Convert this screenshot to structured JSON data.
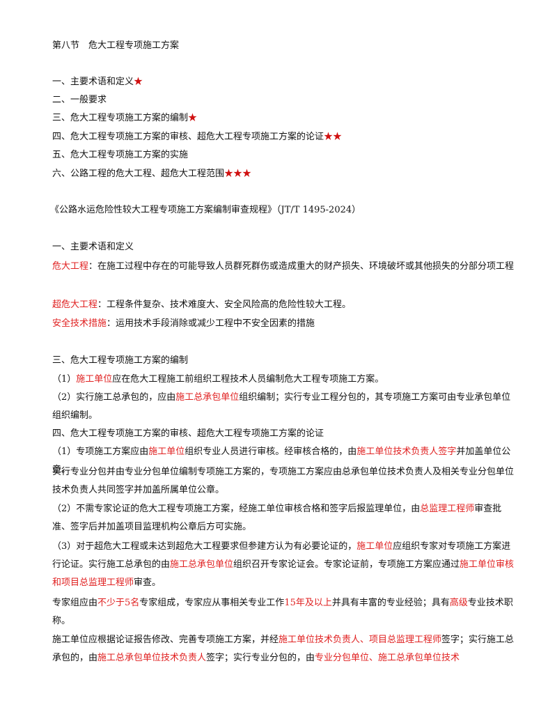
{
  "section_title": "第八节　危大工程专项施工方案",
  "outline": [
    {
      "text": "一、主要术语和定义",
      "stars": "★"
    },
    {
      "text": "二、一般要求",
      "stars": ""
    },
    {
      "text": "三、危大工程专项施工方案的编制",
      "stars": "★"
    },
    {
      "text": "四、危大工程专项施工方案的审核、超危大工程专项施工方案的论证",
      "stars": "★★"
    },
    {
      "text": "五、危大工程专项施工方案的实施",
      "stars": ""
    },
    {
      "text": "六、公路工程的危大工程、超危大工程范围",
      "stars": "★★★"
    }
  ],
  "standard_ref": "《公路水运危险性较大工程专项施工方案编制审查规程》（JT/T 1495-2024）",
  "terms_heading": "一、主要术语和定义",
  "terms": [
    {
      "term": "危大工程",
      "def": "：在施工过程中存在的可能导致人员群死群伤或造成重大的财产损失、环境破坏或其他损失的分部分项工程"
    },
    {
      "term": "超危大工程",
      "def": "：工程条件复杂、技术难度大、安全风险高的危险性较大工程。"
    },
    {
      "term": "安全技术措施",
      "def": "：运用技术手段消除或减少工程中不安全因素的措施"
    }
  ],
  "prep_heading": "三、危大工程专项施工方案的编制",
  "prep_items": [
    {
      "p1": "（1）",
      "r1": "施工单位",
      "p2": "应在危大工程施工前组织工程技术人员编制危大工程专项施工方案。"
    },
    {
      "p1": "（2）实行施工总承包的，应由",
      "r1": "施工总承包单位",
      "p2": "组织编制；实行专业工程分包的，其专项施工方案可由专业承包单位组织编制。"
    }
  ],
  "review_heading": "四、危大工程专项施工方案的审核、超危大工程专项施工方案的论证",
  "review_1": {
    "a": "（1）专项施工方案应由",
    "b": "施工单位",
    "c": "组织专业人员进行审核。经审核合格的，由",
    "d": "施工单位技术负责人签字",
    "e": "并加盖单位公章。"
  },
  "review_1b": "实行专业分包并由专业分包单位编制专项施工方案的，专项施工方案应由总承包单位技术负责人及相关专业分包单位技术负责人共同签字并加盖所属单位公章。",
  "review_2": {
    "a": "（2）不需专家论证的危大工程专项施工方案，经施工单位审核合格和签字后报监理单位，由",
    "b": "总监理工程师",
    "c": "审查批准、签字后并加盖项目监理机构公章后方可实施。"
  },
  "review_3": {
    "a": "（3）对于超危大工程或未达到超危大工程要求但参建方认为有必要论证的，",
    "b": "施工单位",
    "c": "应组织专家对专项施工方案进行论证。实行施工总承包的由",
    "d": "施工总承包单位",
    "e": "组织召开专家论证会。专家论证前，专项施工方案应通过",
    "f": "施工单位审核和项目总监理工程师",
    "g": "审查。"
  },
  "expert": {
    "a": "专家组应由",
    "b": "不少于5名",
    "c": "专家组成，专家应从事相关专业工作",
    "d": "15年及以上",
    "e": "并具有丰富的专业经验；具有",
    "f": "高级",
    "g": "专业技术职称。"
  },
  "revise": {
    "a": "施工单位应根据论证报告修改、完善专项施工方案，并经",
    "b": "施工单位技术负责人、项目总监理工程师",
    "c": "签字；实行施工总承包的，由",
    "d": "施工总承包单位技术负责人",
    "e": "签字；实行专业分包的，由",
    "f": "专业分包单位、施工总承包单位技术"
  },
  "colors": {
    "highlight": "#e02020",
    "star": "#d01010",
    "text": "#111111"
  }
}
